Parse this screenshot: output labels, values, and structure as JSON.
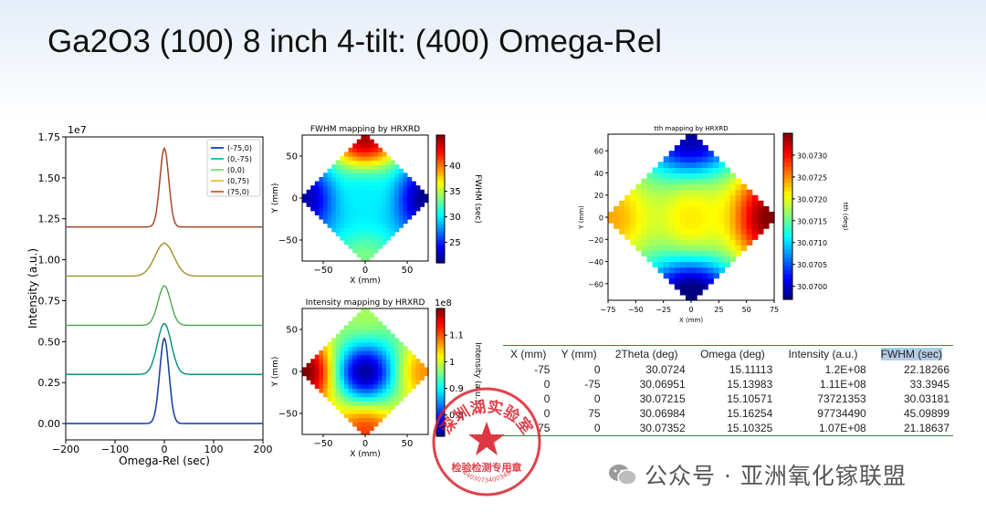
{
  "slide": {
    "title": "Ga2O3 (100) 8 inch 4-tilt: (400) Omega-Rel",
    "watermark": "公众号 · 亚洲氧化镓联盟",
    "stamp_text": "深圳湖实验室 检验检测专用章 4403073400348"
  },
  "chart_data": [
    {
      "type": "line",
      "xlabel": "Omega-Rel (sec)",
      "ylabel": "Intensity (a.u.)",
      "offset_label": "1e7",
      "xlim": [
        -200,
        200
      ],
      "ylim": [
        -0.1,
        1.75
      ],
      "x_ticks": [
        -200,
        -100,
        0,
        100,
        200
      ],
      "y_ticks": [
        0.0,
        0.25,
        0.5,
        0.75,
        1.0,
        1.25,
        1.5,
        1.75
      ],
      "legend_position": "top-right",
      "series": [
        {
          "name": "(-75,0)",
          "color": "#1f4fd8",
          "baseline": 0.0,
          "peak": 0.52,
          "fwhm": 22.18
        },
        {
          "name": "(0,-75)",
          "color": "#20c8b0",
          "baseline": 0.3,
          "peak": 0.61,
          "fwhm": 33.39
        },
        {
          "name": "(0,0)",
          "color": "#7fe87f",
          "baseline": 0.6,
          "peak": 0.84,
          "fwhm": 30.03
        },
        {
          "name": "(0,75)",
          "color": "#e6c84a",
          "baseline": 0.9,
          "peak": 1.1,
          "fwhm": 45.1
        },
        {
          "name": "(75,0)",
          "color": "#e8643a",
          "baseline": 1.2,
          "peak": 1.68,
          "fwhm": 21.19
        }
      ]
    },
    {
      "type": "heatmap",
      "title": "FWHM mapping by HRXRD",
      "xlabel": "X (mm)",
      "ylabel": "Y (mm)",
      "xlim": [
        -75,
        75
      ],
      "ylim": [
        -75,
        75
      ],
      "x_ticks": [
        -50,
        0,
        50
      ],
      "y_ticks": [
        -50,
        0,
        50
      ],
      "colorbar_label": "FWHM (sec)",
      "colorbar_range": [
        21,
        46
      ],
      "colorbar_ticks": [
        25,
        30,
        35,
        40
      ],
      "colorscale": "jet",
      "points": [
        {
          "x": -75,
          "y": 0,
          "value": 22.18266
        },
        {
          "x": 0,
          "y": -75,
          "value": 33.3945
        },
        {
          "x": 0,
          "y": 0,
          "value": 30.03181
        },
        {
          "x": 0,
          "y": 75,
          "value": 45.09899
        },
        {
          "x": 75,
          "y": 0,
          "value": 21.18637
        }
      ]
    },
    {
      "type": "heatmap",
      "title": "Intensity mapping by HRXRD",
      "xlabel": "X (mm)",
      "ylabel": "Y (mm)",
      "xlim": [
        -75,
        75
      ],
      "ylim": [
        -75,
        75
      ],
      "x_ticks": [
        -50,
        0,
        50
      ],
      "y_ticks": [
        -50,
        0,
        50
      ],
      "colorbar_label": "Intensity (a.u.)",
      "colorbar_offset": "1e8",
      "colorbar_range": [
        0.72,
        1.2
      ],
      "colorbar_ticks": [
        0.8,
        0.9,
        1.0,
        1.1
      ],
      "colorscale": "jet",
      "points": [
        {
          "x": -75,
          "y": 0,
          "value": 1.2
        },
        {
          "x": 0,
          "y": -75,
          "value": 1.11
        },
        {
          "x": 0,
          "y": 0,
          "value": 0.737
        },
        {
          "x": 0,
          "y": 75,
          "value": 0.977
        },
        {
          "x": 75,
          "y": 0,
          "value": 1.07
        }
      ]
    },
    {
      "type": "heatmap",
      "title": "tth mapping by HRXRD",
      "xlabel": "X (mm)",
      "ylabel": "Y (mm)",
      "xlim": [
        -75,
        75
      ],
      "ylim": [
        -75,
        75
      ],
      "x_ticks": [
        -75,
        -50,
        -25,
        0,
        25,
        50,
        75
      ],
      "y_ticks": [
        -60,
        -40,
        -20,
        0,
        20,
        40,
        60
      ],
      "colorbar_label": "tth (deg)",
      "colorbar_range": [
        30.0697,
        30.0735
      ],
      "colorbar_ticks": [
        30.07,
        30.0705,
        30.071,
        30.0715,
        30.072,
        30.0725,
        30.073
      ],
      "colorbar_tick_labels": [
        "30.0700",
        "30.0705",
        "30.0710",
        "30.0715",
        "30.0720",
        "30.0725",
        "30.0730"
      ],
      "colorscale": "jet",
      "points": [
        {
          "x": -75,
          "y": 0,
          "value": 30.0724
        },
        {
          "x": 0,
          "y": -75,
          "value": 30.06951
        },
        {
          "x": 0,
          "y": 0,
          "value": 30.07215
        },
        {
          "x": 0,
          "y": 75,
          "value": 30.06984
        },
        {
          "x": 75,
          "y": 0,
          "value": 30.07352
        }
      ]
    }
  ],
  "table": {
    "headers": [
      "X (mm)",
      "Y (mm)",
      "2Theta (deg)",
      "Omega (deg)",
      "Intensity (a.u.)",
      "FWHM (sec)"
    ],
    "rows": [
      [
        "-75",
        "0",
        "30.0724",
        "15.11113",
        "1.2E+08",
        "22.18266"
      ],
      [
        "0",
        "-75",
        "30.06951",
        "15.13983",
        "1.11E+08",
        "33.3945"
      ],
      [
        "0",
        "0",
        "30.07215",
        "15.10571",
        "73721353",
        "30.03181"
      ],
      [
        "0",
        "75",
        "30.06984",
        "15.16254",
        "97734490",
        "45.09899"
      ],
      [
        "75",
        "0",
        "30.07352",
        "15.10325",
        "1.07E+08",
        "21.18637"
      ]
    ]
  }
}
